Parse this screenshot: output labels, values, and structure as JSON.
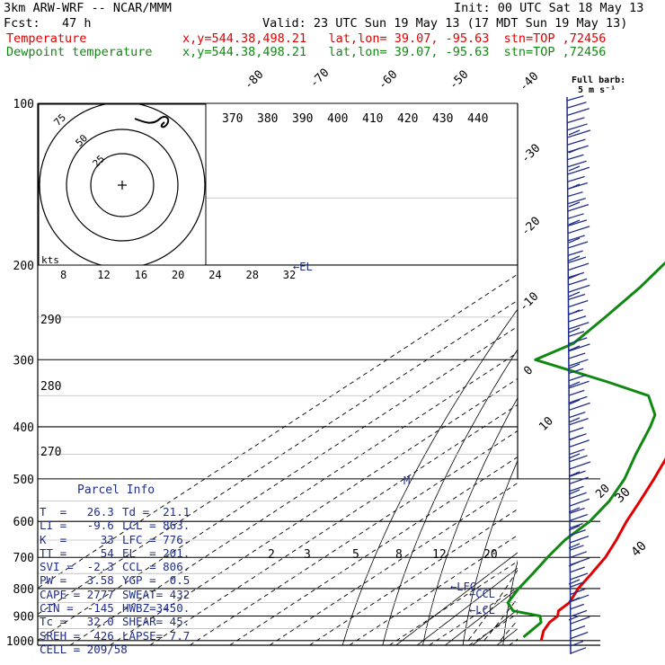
{
  "header": {
    "model": "3km ARW-WRF -- NCAR/MMM",
    "init": "Init: 00 UTC Sat 18 May 13",
    "fcst": "Fcst:   47 h",
    "valid": "Valid: 23 UTC Sun 19 May 13 (17 MDT Sun 19 May 13)"
  },
  "legend": [
    {
      "name": "Temperature",
      "info": "x,y=544.38,498.21   lat,lon= 39.07, -95.63  stn=TOP ,72456",
      "color": "#e00000"
    },
    {
      "name": "Dewpoint temperature",
      "info": "x,y=544.38,498.21   lat,lon= 39.07, -95.63  stn=TOP ,72456",
      "color": "#118811"
    }
  ],
  "wind_label": {
    "line1": "Full barb:",
    "line2": "5 m s⁻¹"
  },
  "hodograph": {
    "speed_unit": "kts",
    "rings": [
      "25",
      "50",
      "75"
    ],
    "tick_labels": [
      "8",
      "12",
      "16",
      "20",
      "24",
      "28",
      "32"
    ]
  },
  "parcel_info": {
    "title": "Parcel Info",
    "rows": [
      [
        "T  =   26.3",
        "Td =  21.1"
      ],
      [
        "LI =   -9.6",
        "LCL = 863."
      ],
      [
        "K  =     33",
        "LFC = 776."
      ],
      [
        "TT =     54",
        "EL  = 201."
      ],
      [
        "SVI =  -2.3",
        "CCL = 806."
      ],
      [
        "PW =   3.58",
        "YGP =  0.5"
      ],
      [
        "CAPE = 2777",
        "SWEAT= 432"
      ],
      [
        "CIN =  -145",
        "HWBZ=3450."
      ],
      [
        "Tc =   32.0",
        "SHEAR= 45."
      ],
      [
        "SREH =  426",
        "LAPSE= 7.7"
      ],
      [
        "CELL = 209/58",
        ""
      ]
    ]
  },
  "annotations": {
    "el": "EL",
    "lfc": "LFC",
    "ccl": "CCL",
    "lcl": "LCL"
  },
  "chart_data": {
    "type": "line",
    "subtype": "skew-T log-p sounding",
    "y_axis": {
      "label": "pressure (hPa)",
      "scale": "log",
      "ticks": [
        100,
        200,
        300,
        400,
        500,
        600,
        700,
        800,
        900,
        1000
      ]
    },
    "isotherm_labels": [
      "-80",
      "-70",
      "-60",
      "-50",
      "-40",
      "-30",
      "-20",
      "-10",
      "0",
      "10",
      "20",
      "30",
      "40"
    ],
    "theta_labels": [
      "370",
      "380",
      "390",
      "400",
      "410",
      "420",
      "430",
      "440"
    ],
    "dry_adiabat_side_labels": [
      "290",
      "280",
      "270"
    ],
    "mixing_ratio_labels": [
      "2",
      "3",
      "5",
      "8",
      "12",
      "20"
    ],
    "series": [
      {
        "name": "Temperature",
        "color": "#e00000",
        "p": [
          1000,
          960,
          925,
          900,
          880,
          850,
          800,
          750,
          700,
          650,
          600,
          550,
          500,
          450,
          400,
          350,
          330,
          300,
          270,
          250,
          230,
          200,
          180,
          165,
          150,
          135,
          120,
          100
        ],
        "t": [
          26.3,
          23.2,
          21.4,
          21.0,
          19.2,
          18.8,
          15.6,
          13.2,
          10.5,
          6.6,
          2.0,
          -2.4,
          -7.4,
          -13.2,
          -19.8,
          -28.0,
          -31.5,
          -38.6,
          -45.4,
          -50.5,
          -55.3,
          -61.5,
          -63.0,
          -63.4,
          -62.9,
          -62.5,
          -63.2,
          -66.4
        ]
      },
      {
        "name": "Dewpoint temperature",
        "color": "#118811",
        "p": [
          985,
          960,
          925,
          900,
          880,
          850,
          800,
          750,
          700,
          650,
          600,
          550,
          500,
          450,
          400,
          380,
          350,
          330,
          300,
          280,
          250,
          220,
          200,
          170,
          150,
          120,
          100
        ],
        "td": [
          20.5,
          20.0,
          19.3,
          16.6,
          7.8,
          3.4,
          0.7,
          -1.5,
          -4.0,
          -6.3,
          -7.2,
          -10.1,
          -14.8,
          -21.4,
          -28.3,
          -31.7,
          -40.7,
          -56.2,
          -82.8,
          -79.5,
          -81.6,
          -84.3,
          -87.1,
          -91.3,
          -95.0,
          -100.8,
          -105.6
        ]
      }
    ]
  }
}
